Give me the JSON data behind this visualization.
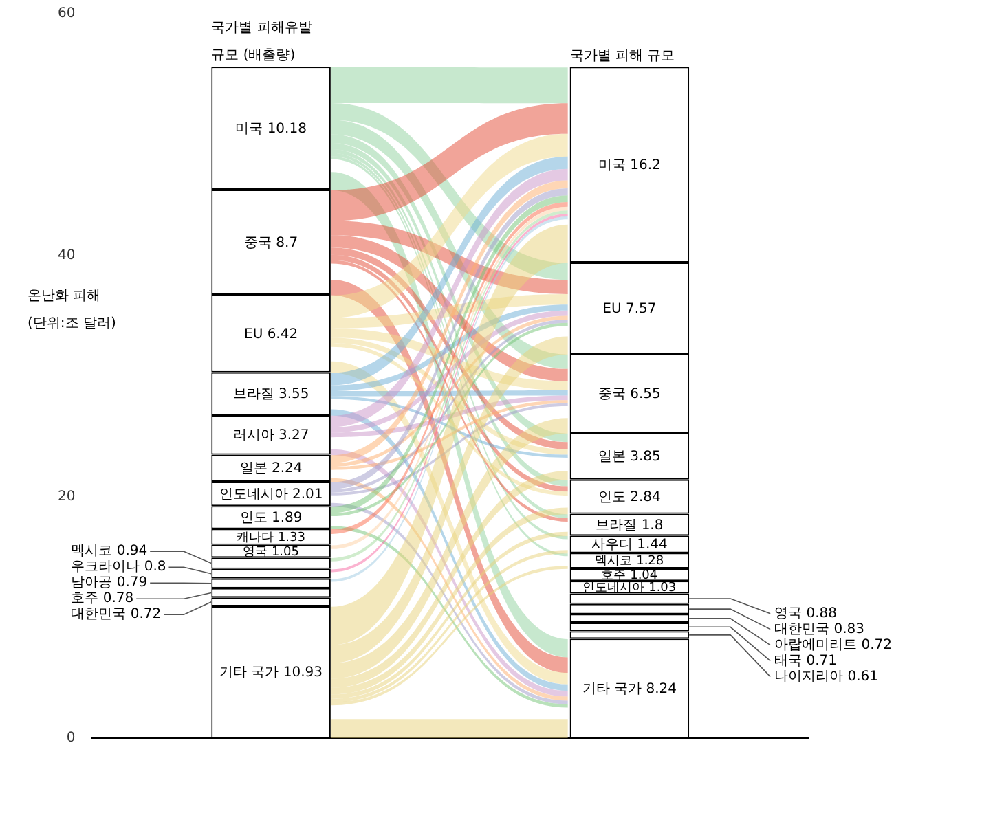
{
  "chart_data": {
    "type": "bar",
    "stacked": true,
    "ylabel": "온난화 피해\n(단위:조 달러)",
    "categories": [
      "국가별 피해유발\n규모 (배출량)",
      "국가별 피해 규모"
    ],
    "ylim": [
      0,
      60
    ],
    "yticks": [
      0,
      20,
      40,
      60
    ],
    "legend": false,
    "series": [
      {
        "color": "#ffffff",
        "values": [
          10.93,
          null
        ],
        "value_labels": [
          "기타 국가 10.93",
          null
        ]
      },
      {
        "color": "#ffffff",
        "values": [
          0.72,
          null
        ],
        "value_labels": [
          "대한민국 0.72",
          null
        ]
      },
      {
        "color": "#ffffff",
        "values": [
          0.78,
          null
        ],
        "value_labels": [
          "호주 0.78",
          null
        ]
      },
      {
        "color": "#ffffff",
        "values": [
          0.79,
          null
        ],
        "value_labels": [
          "남아공 0.79",
          null
        ]
      },
      {
        "color": "#ffffff",
        "values": [
          0.8,
          null
        ],
        "value_labels": [
          "우크라이나 0.8",
          null
        ]
      },
      {
        "color": "#ffffff",
        "values": [
          0.94,
          null
        ],
        "value_labels": [
          "멕시코 0.94",
          null
        ]
      },
      {
        "color": "#ffffff",
        "values": [
          1.05,
          null
        ],
        "value_labels": [
          "영국 1.05",
          null
        ]
      },
      {
        "color": "#ffffff",
        "values": [
          1.33,
          null
        ],
        "value_labels": [
          "캐나다 1.33",
          null
        ]
      },
      {
        "color": "#ffffff",
        "values": [
          1.89,
          null
        ],
        "value_labels": [
          "인도 1.89",
          null
        ]
      },
      {
        "color": "#ffffff",
        "values": [
          2.01,
          null
        ],
        "value_labels": [
          "인도네시아 2.01",
          null
        ]
      },
      {
        "color": "#ffffff",
        "values": [
          2.24,
          null
        ],
        "value_labels": [
          "일본 2.24",
          null
        ]
      },
      {
        "color": "#ffffff",
        "values": [
          3.27,
          null
        ],
        "value_labels": [
          "러시아 3.27",
          null
        ]
      },
      {
        "color": "#ffffff",
        "values": [
          3.55,
          null
        ],
        "value_labels": [
          "브라질 3.55",
          null
        ]
      },
      {
        "color": "#ffffff",
        "values": [
          6.42,
          null
        ],
        "value_labels": [
          "EU 6.42",
          null
        ]
      },
      {
        "color": "#ffffff",
        "values": [
          8.7,
          null
        ],
        "value_labels": [
          "중국 8.7",
          null
        ]
      },
      {
        "color": "#ffffff",
        "values": [
          10.18,
          null
        ],
        "value_labels": [
          "미국 10.18",
          null
        ]
      },
      {
        "color": "#ffffff",
        "values": [
          null,
          8.24
        ],
        "value_labels": [
          null,
          "기타 국가 8.24"
        ]
      },
      {
        "color": "#ffffff",
        "values": [
          null,
          0.61
        ],
        "value_labels": [
          null,
          "나이지리아 0.61"
        ]
      },
      {
        "color": "#ffffff",
        "values": [
          null,
          0.71
        ],
        "value_labels": [
          null,
          "태국 0.71"
        ]
      },
      {
        "color": "#ffffff",
        "values": [
          null,
          0.72
        ],
        "value_labels": [
          null,
          "아랍에미리트 0.72"
        ]
      },
      {
        "color": "#ffffff",
        "values": [
          null,
          0.83
        ],
        "value_labels": [
          null,
          "대한민국 0.83"
        ]
      },
      {
        "color": "#ffffff",
        "values": [
          null,
          0.88
        ],
        "value_labels": [
          null,
          "영국 0.88"
        ]
      },
      {
        "color": "#ffffff",
        "values": [
          null,
          1.03
        ],
        "value_labels": [
          null,
          "인도네시아 1.03"
        ]
      },
      {
        "color": "#ffffff",
        "values": [
          null,
          1.04
        ],
        "value_labels": [
          null,
          "호주 1.04"
        ]
      },
      {
        "color": "#ffffff",
        "values": [
          null,
          1.28
        ],
        "value_labels": [
          null,
          "멕시코 1.28"
        ]
      },
      {
        "color": "#ffffff",
        "values": [
          null,
          1.44
        ],
        "value_labels": [
          null,
          "사우디 1.44"
        ]
      },
      {
        "color": "#ffffff",
        "values": [
          null,
          1.8
        ],
        "value_labels": [
          null,
          "브라질 1.8"
        ]
      },
      {
        "color": "#ffffff",
        "values": [
          null,
          2.84
        ],
        "value_labels": [
          null,
          "인도 2.84"
        ]
      },
      {
        "color": "#ffffff",
        "values": [
          null,
          3.85
        ],
        "value_labels": [
          null,
          "일본 3.85"
        ]
      },
      {
        "color": "#ffffff",
        "values": [
          null,
          6.55
        ],
        "value_labels": [
          null,
          "중국 6.55"
        ]
      },
      {
        "color": "#ffffff",
        "values": [
          null,
          7.57
        ],
        "value_labels": [
          null,
          "EU 7.57"
        ]
      },
      {
        "color": "#ffffff",
        "values": [
          null,
          16.2
        ],
        "value_labels": [
          null,
          "미국 16.2"
        ]
      }
    ]
  }
}
